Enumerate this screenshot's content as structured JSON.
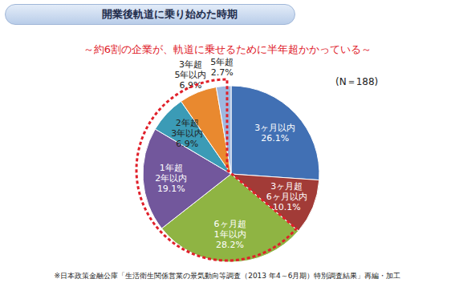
{
  "chart_data": {
    "type": "pie",
    "title": "開業後軌道に乗り始めた時期",
    "subtitle": "～約6割の企業が、軌道に乗せるために半年超かかっている～",
    "annotations": [
      "(N＝188)",
      "※日本政策金融公庫「生活衛生関係営業の景気動向等調査（2013 年4～6月期）特別調査結果」再編・加工"
    ],
    "categories": [
      "3ヶ月以内",
      "3ヶ月超\n6ヶ月以内",
      "6ヶ月超\n1年以内",
      "1年超\n2年以内",
      "2年超\n3年以内",
      "3年超\n5年以内",
      "5年超"
    ],
    "values": [
      26.1,
      10.1,
      28.2,
      19.1,
      6.9,
      6.9,
      2.7
    ],
    "value_labels": [
      "26.1%",
      "10.1%",
      "28.2%",
      "19.1%",
      "6.9%",
      "6.9%",
      "2.7%"
    ],
    "colors": [
      "#4170b4",
      "#a23b37",
      "#8fb443",
      "#72579c",
      "#3b9bb6",
      "#e9892f",
      "#9fb8e0"
    ],
    "data_labels": true
  }
}
